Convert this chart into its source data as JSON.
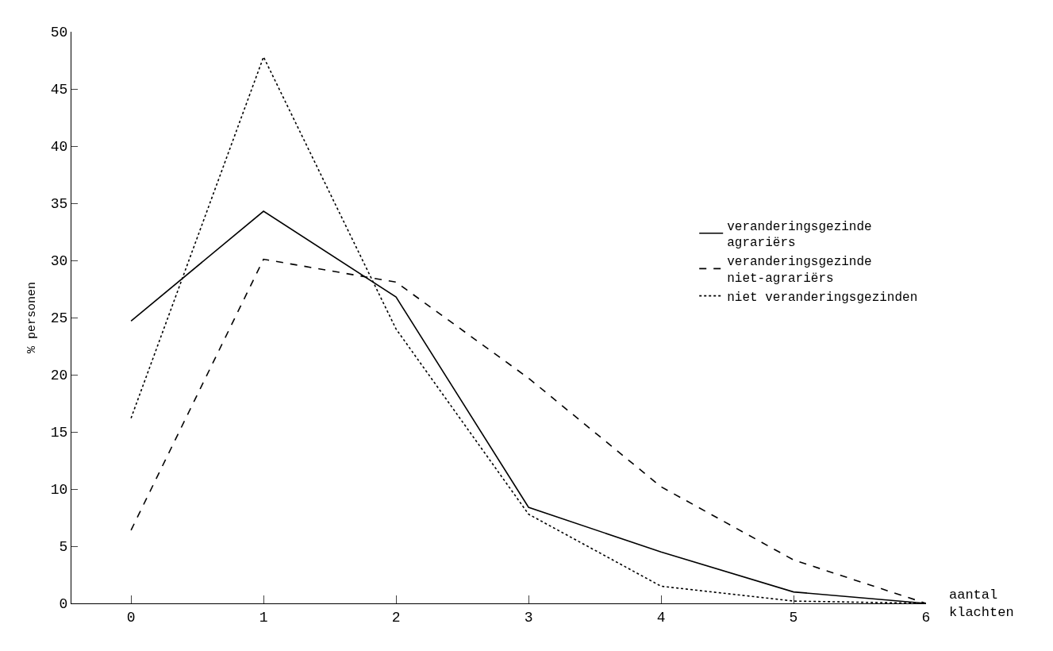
{
  "chart_data": {
    "type": "line",
    "xlabel": "aantal klachten",
    "ylabel": "% personen",
    "x": [
      0,
      1,
      2,
      3,
      4,
      5,
      6
    ],
    "series": [
      {
        "name": "veranderingsgezinde agrariërs",
        "color": "#000000",
        "line_style": "solid",
        "values": [
          24.7,
          34.3,
          26.8,
          8.4,
          4.5,
          1.0,
          0
        ]
      },
      {
        "name": "veranderingsgezinde niet-agrariërs",
        "color": "#000000",
        "line_style": "dashed",
        "values": [
          6.4,
          30.1,
          28.1,
          19.7,
          10.2,
          3.8,
          0
        ]
      },
      {
        "name": "niet veranderingsgezinden",
        "color": "#000000",
        "line_style": "dotted",
        "values": [
          16.2,
          47.8,
          24.0,
          7.8,
          1.5,
          0.2,
          0
        ]
      }
    ],
    "xlim": [
      -0.45,
      6
    ],
    "xticks": [
      0,
      1,
      2,
      3,
      4,
      5,
      6
    ],
    "ylim": [
      0,
      50
    ],
    "yticks": [
      0,
      5,
      10,
      15,
      20,
      25,
      30,
      35,
      40,
      45,
      50
    ],
    "legend": "right",
    "marker": "none"
  }
}
